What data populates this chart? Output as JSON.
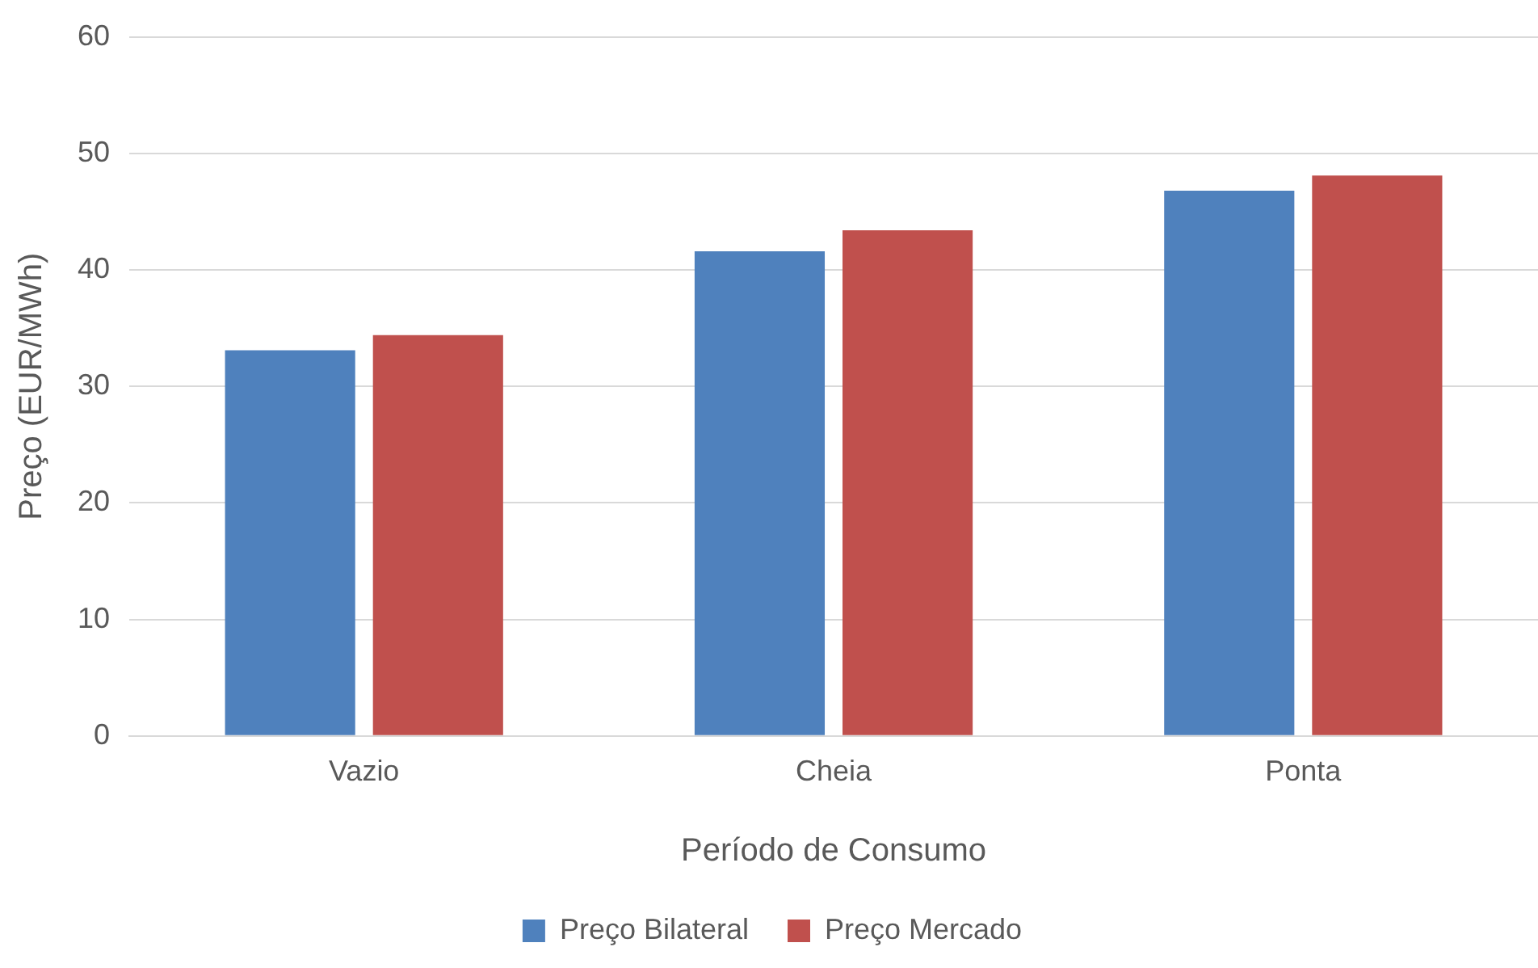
{
  "chart_data": {
    "type": "bar",
    "xlabel": "Período de Consumo",
    "ylabel": "Preço (EUR/MWh)",
    "categories": [
      "Vazio",
      "Cheia",
      "Ponta"
    ],
    "series": [
      {
        "name": "Preço Bilateral",
        "color": "#4f81bd",
        "values": [
          33.1,
          41.6,
          46.8
        ]
      },
      {
        "name": "Preço Mercado",
        "color": "#c0504d",
        "values": [
          34.4,
          43.4,
          48.1
        ]
      }
    ],
    "ylim": [
      0,
      60
    ],
    "yticks": [
      0,
      10,
      20,
      30,
      40,
      50,
      60
    ],
    "grid": "y",
    "legend": "bottom"
  }
}
